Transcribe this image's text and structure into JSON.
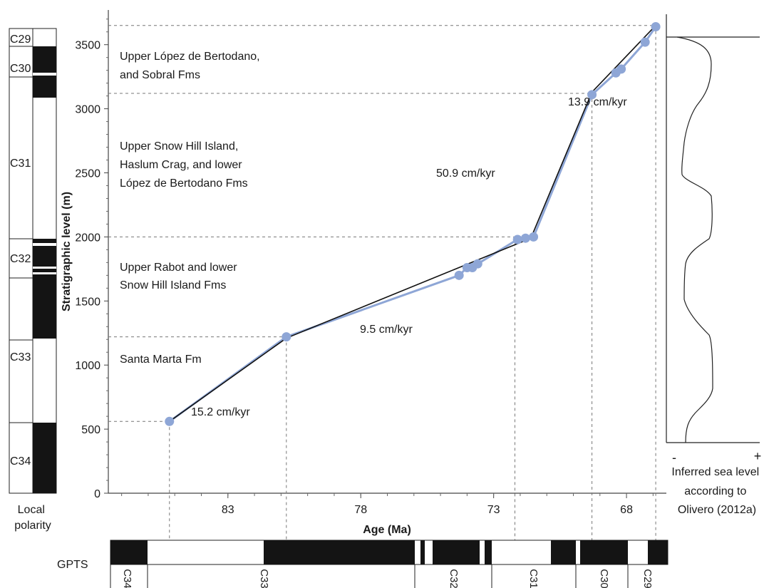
{
  "chart_data": {
    "type": "line",
    "xlabel": "Age (Ma)",
    "ylabel": "Stratigraphic level (m)",
    "xlim": [
      87.5,
      66.5
    ],
    "ylim": [
      0,
      3750
    ],
    "x_ticks": [
      "83",
      "78",
      "73",
      "68"
    ],
    "y_ticks": [
      "0",
      "500",
      "1000",
      "1500",
      "2000",
      "2500",
      "3000",
      "3500"
    ],
    "series": [
      {
        "points": [
          {
            "age": 85.2,
            "level": 560
          },
          {
            "age": 80.8,
            "level": 1220
          },
          {
            "age": 74.3,
            "level": 1700
          },
          {
            "age": 74.0,
            "level": 1760
          },
          {
            "age": 73.8,
            "level": 1760
          },
          {
            "age": 73.6,
            "level": 1790
          },
          {
            "age": 72.1,
            "level": 1980
          },
          {
            "age": 71.8,
            "level": 1990
          },
          {
            "age": 71.5,
            "level": 2000
          },
          {
            "age": 69.3,
            "level": 3110
          },
          {
            "age": 68.4,
            "level": 3280
          },
          {
            "age": 68.2,
            "level": 3310
          },
          {
            "age": 67.3,
            "level": 3520
          },
          {
            "age": 66.9,
            "level": 3640
          }
        ],
        "fit_line": [
          {
            "age": 85.2,
            "level": 560
          },
          {
            "age": 80.8,
            "level": 1210
          },
          {
            "age": 71.6,
            "level": 1990
          },
          {
            "age": 69.3,
            "level": 3130
          },
          {
            "age": 66.9,
            "level": 3650
          }
        ]
      }
    ],
    "rates": [
      "15.2 cm/kyr",
      "9.5 cm/kyr",
      "50.9 cm/kyr",
      "13.9 cm/kyr"
    ],
    "formations": [
      "Santa Marta Fm",
      "Upper Rabot and lower\nSnow Hill Island Fms",
      "Upper Snow Hill Island,\nHaslum Crag, and lower\nLópez de Bertodano Fms",
      "Upper López de Bertodano,\nand Sobral Fms"
    ],
    "boundaries": {
      "levels": [
        560,
        1220,
        2000,
        3120,
        3650
      ],
      "ages": [
        85.2,
        80.8,
        72.2,
        69.3,
        66.9
      ]
    },
    "local_polarity": {
      "label": "Local polarity",
      "chrons": [
        "C29",
        "C30",
        "C31",
        "C32",
        "C33",
        "C34"
      ]
    },
    "gpts": {
      "label": "GPTS",
      "chrons": [
        "C34",
        "C33",
        "C32",
        "C31",
        "C30",
        "C29"
      ]
    },
    "sea_level": {
      "label": "Inferred sea level according to Olivero (2012a)",
      "minus": "-",
      "plus": "+"
    }
  }
}
